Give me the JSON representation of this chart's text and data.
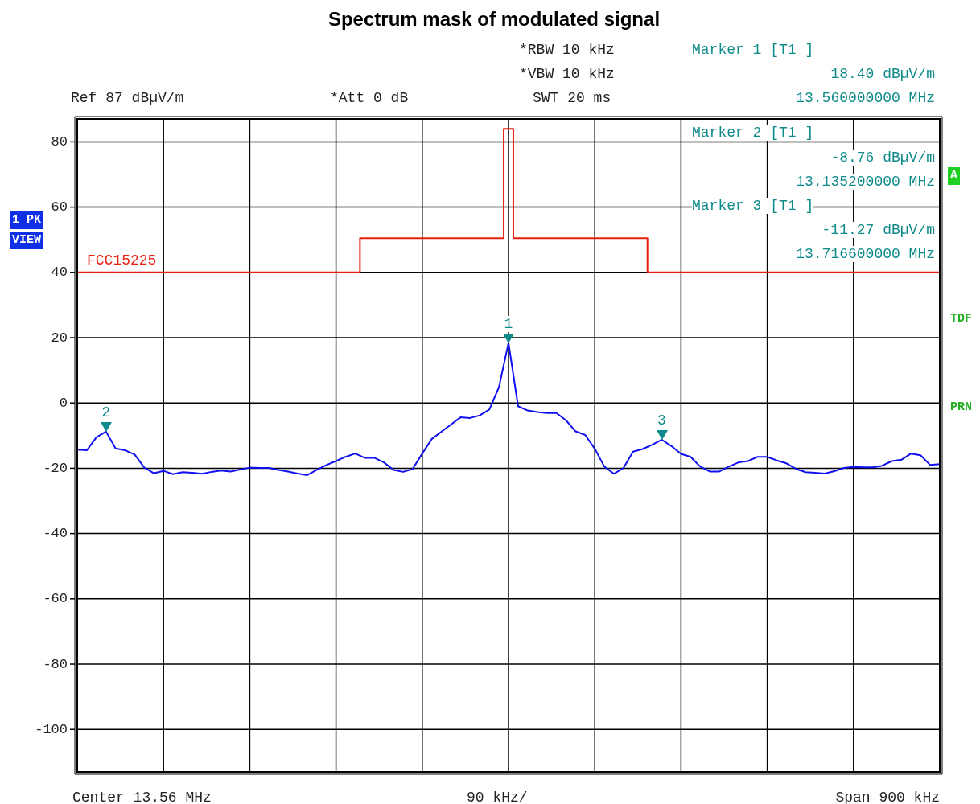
{
  "chart_data": {
    "type": "line",
    "title": "Spectrum mask of modulated signal",
    "categories": [
      null,
      null,
      null,
      null,
      null,
      null,
      null,
      null,
      null,
      null,
      null,
      null,
      null,
      null,
      null,
      null,
      null,
      null,
      null,
      null,
      null,
      null,
      null,
      null,
      null,
      null,
      null,
      null,
      null,
      null,
      null,
      null,
      null,
      null,
      null,
      null,
      null,
      null,
      null,
      null,
      null,
      null,
      null,
      null,
      null,
      null,
      null,
      null,
      null,
      null,
      null,
      null,
      null,
      null,
      null,
      null,
      null,
      null,
      null,
      null,
      null,
      null,
      null,
      null,
      null,
      null,
      null,
      null,
      null,
      null,
      null,
      null,
      null,
      null,
      null,
      null,
      null,
      null,
      null,
      null,
      null,
      null,
      null,
      null,
      null,
      null,
      null,
      null,
      null,
      null,
      null
    ],
    "ylim": [
      -113,
      87
    ],
    "yticks": [
      -100,
      -80,
      -60,
      -40,
      -20,
      0,
      20,
      40,
      60,
      80
    ],
    "tick_labels": "y",
    "grid": true,
    "legend": false,
    "series": [
      {
        "color": "#1010f0",
        "values": [
          -14.3,
          -14.5,
          -10.5,
          -8.76,
          -13.9,
          -14.5,
          -15.8,
          -19.8,
          -21.5,
          -20.8,
          -21.8,
          -21.2,
          -21.4,
          -21.7,
          -21.1,
          -20.7,
          -21.0,
          -20.4,
          -19.8,
          -19.9,
          -19.9,
          -20.5,
          -21.0,
          -21.6,
          -22.1,
          -20.5,
          -19.0,
          -17.8,
          -16.5,
          -15.5,
          -16.8,
          -16.8,
          -18.2,
          -20.5,
          -21.1,
          -20.2,
          -15.5,
          -11.0,
          -8.8,
          -6.6,
          -4.4,
          -4.6,
          -3.8,
          -2.0,
          4.8,
          18.4,
          -1.0,
          -2.3,
          -2.8,
          -3.1,
          -3.1,
          -5.3,
          -8.7,
          -9.8,
          -14.0,
          -19.5,
          -21.7,
          -19.9,
          -14.9,
          -14.1,
          -12.8,
          -11.27,
          -13.2,
          -15.6,
          -16.5,
          -19.5,
          -21.0,
          -21.0,
          -19.5,
          -18.2,
          -17.8,
          -16.5,
          -16.5,
          -17.6,
          -18.5,
          -20.2,
          -21.2,
          -21.4,
          -21.6,
          -20.9,
          -19.9,
          -19.6,
          -19.7,
          -19.7,
          -19.2,
          -17.8,
          -17.4,
          -15.5,
          -16.0,
          -19.0,
          -18.7
        ]
      },
      {
        "type": "step",
        "name": "FCC15225",
        "color": "#e82010",
        "values": [
          40,
          40,
          40,
          40,
          40,
          40,
          40,
          40,
          40,
          40,
          40,
          40,
          40,
          40,
          40,
          40,
          40,
          40,
          40,
          40,
          40,
          40,
          40,
          40,
          40,
          40,
          40,
          40,
          40,
          40,
          50.5,
          50.5,
          50.5,
          50.5,
          50.5,
          50.5,
          50.5,
          50.5,
          50.5,
          50.5,
          50.5,
          50.5,
          50.5,
          50.5,
          50.5,
          84,
          50.5,
          50.5,
          50.5,
          50.5,
          50.5,
          50.5,
          50.5,
          50.5,
          50.5,
          50.5,
          50.5,
          50.5,
          50.5,
          50.5,
          40,
          40,
          40,
          40,
          40,
          40,
          40,
          40,
          40,
          40,
          40,
          40,
          40,
          40,
          40,
          40,
          40,
          40,
          40,
          40,
          40,
          40,
          40,
          40,
          40,
          40,
          40,
          40,
          40,
          40,
          40
        ]
      }
    ],
    "annotations": [
      "Ref 87 dBµV/m",
      "*Att 0 dB",
      "*RBW 10 kHz",
      "*VBW 10 kHz",
      "SWT 20 ms",
      "Marker 1 [T1 ]",
      "18.40 dBµV/m",
      "13.560000000 MHz",
      "Marker 2 [T1 ]",
      "-8.76 dBµV/m",
      "13.135200000 MHz",
      "Marker 3 [T1 ]",
      "-11.27 dBµV/m",
      "13.716600000 MHz",
      "Center 13.56 MHz",
      "90 kHz/",
      "Span 900 kHz",
      "1 PK",
      "VIEW",
      "A",
      "TDF",
      "PRN",
      {
        "text": "1",
        "y": 18.4
      },
      {
        "text": "2",
        "y": -8.76
      },
      {
        "text": "3",
        "y": -11.27
      }
    ]
  }
}
